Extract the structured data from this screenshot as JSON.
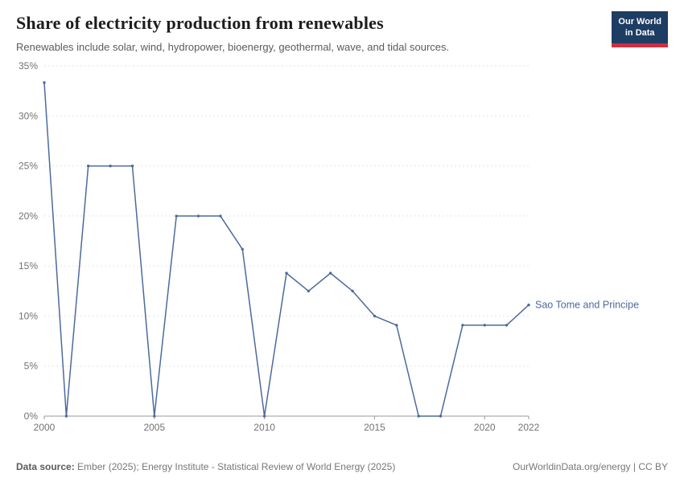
{
  "header": {
    "title": "Share of electricity production from renewables",
    "subtitle": "Renewables include solar, wind, hydropower, bioenergy, geothermal, wave, and tidal sources.",
    "logo": {
      "line1": "Our World",
      "line2": "in Data"
    }
  },
  "colors": {
    "series_blue": "#4c6a9c",
    "logo_navy": "#1d3d63",
    "logo_red": "#d12d41",
    "gridline": "#e2e2e2",
    "axis": "#9a9a9a",
    "tick_text": "#737373"
  },
  "chart_data": {
    "type": "line",
    "title": "Share of electricity production from renewables",
    "xlabel": "",
    "ylabel": "",
    "xlim": [
      2000,
      2022
    ],
    "ylim": [
      0,
      35
    ],
    "xticks": [
      2000,
      2005,
      2010,
      2015,
      2020,
      2022
    ],
    "yticks": [
      0,
      5,
      10,
      15,
      20,
      25,
      30,
      35
    ],
    "ytick_suffix": "%",
    "grid": "dashed-horizontal",
    "legend_position": "right-of-line",
    "series": [
      {
        "name": "Sao Tome and Principe",
        "color": "#4c6a9c",
        "x": [
          2000,
          2001,
          2002,
          2003,
          2004,
          2005,
          2006,
          2007,
          2008,
          2009,
          2010,
          2011,
          2012,
          2013,
          2014,
          2015,
          2016,
          2017,
          2018,
          2019,
          2020,
          2021,
          2022
        ],
        "values": [
          33.33,
          0,
          25,
          25,
          25,
          0,
          20,
          20,
          20,
          16.67,
          0,
          14.29,
          12.5,
          14.29,
          12.5,
          10,
          9.09,
          0,
          0,
          9.09,
          9.09,
          9.09,
          11.11
        ]
      }
    ]
  },
  "footer": {
    "datasource_label": "Data source:",
    "datasource_text": " Ember (2025); Energy Institute - Statistical Review of World Energy (2025)",
    "license": "OurWorldinData.org/energy | CC BY"
  }
}
